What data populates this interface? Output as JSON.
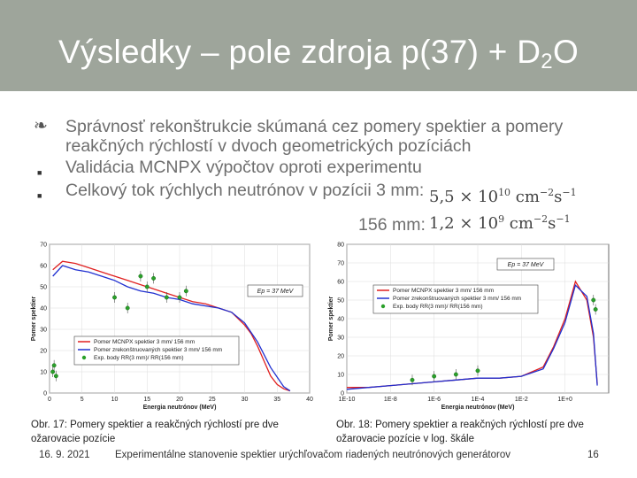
{
  "slide": {
    "title_main": "Výsledky – pole zdroja p(37) + D",
    "title_sub": "2",
    "title_end": "O"
  },
  "bullets": [
    {
      "marker": "",
      "text": "Správnosť rekonštrukcie skúmaná cez pomery spektier a pomery reakčných rýchlostí v dvoch geometrických pozíciách"
    },
    {
      "marker": "■",
      "text": "Validácia MCNPX výpočtov oproti experimentu"
    },
    {
      "marker": "■",
      "text": "Celkový tok rýchlych neutrónov v pozícii 3 mm:"
    }
  ],
  "flux": {
    "line1_value": "5,5 × 10",
    "line1_exp": "10",
    "line1_unit_a": " cm",
    "line1_unit_a_exp": "−2",
    "line1_unit_b": "s",
    "line1_unit_b_exp": "−1",
    "line2_label": "156 mm:",
    "line2_value": "1,2 × 10",
    "line2_exp": "9",
    "line2_unit_a": " cm",
    "line2_unit_a_exp": "−2",
    "line2_unit_b": "s",
    "line2_unit_b_exp": "−1"
  },
  "chart_data": [
    {
      "type": "line",
      "xlabel": "Energia neutrónov (MeV)",
      "ylabel": "Pomer spektier",
      "xlim": [
        0,
        40
      ],
      "ylim": [
        0,
        70
      ],
      "xticks": [
        "0",
        "5",
        "10",
        "15",
        "20",
        "25",
        "30",
        "35",
        "40"
      ],
      "yticks": [
        "0",
        "10",
        "20",
        "30",
        "40",
        "50",
        "60",
        "70"
      ],
      "annotation": "Ep = 37 MeV",
      "legend": [
        "Pomer MCNPX spektier 3 mm/ 156 mm",
        "Pomer zrekonštruovaných spektier 3 mm/ 156 mm",
        "Exp. body RR(3 mm)/ RR(156 mm)"
      ],
      "series": [
        {
          "name": "Pomer MCNPX spektier 3 mm/ 156 mm",
          "color": "#e02020",
          "x": [
            0.5,
            2,
            4,
            6,
            8,
            10,
            12,
            14,
            16,
            18,
            20,
            22,
            24,
            26,
            28,
            30,
            31,
            32,
            33,
            34,
            35,
            36,
            37
          ],
          "y": [
            58,
            62,
            61,
            59,
            57,
            55,
            53,
            51,
            49,
            47,
            45,
            43,
            42,
            40,
            38,
            32,
            28,
            22,
            15,
            8,
            4,
            2,
            1
          ]
        },
        {
          "name": "Pomer zrekonštruovaných spektier 3 mm/ 156 mm",
          "color": "#2030d0",
          "x": [
            0.5,
            2,
            4,
            6,
            8,
            10,
            12,
            14,
            16,
            18,
            20,
            22,
            24,
            26,
            28,
            30,
            32,
            34,
            36,
            37
          ],
          "y": [
            55,
            60,
            58,
            57,
            55,
            53,
            50,
            48,
            47,
            45,
            44,
            42,
            41,
            40,
            38,
            33,
            24,
            12,
            3,
            1
          ]
        },
        {
          "name": "Exp. body RR(3 mm)/ RR(156 mm)",
          "color": "#2aa02a",
          "x": [
            0.5,
            0.7,
            1,
            10,
            12,
            14,
            15,
            16,
            18,
            20,
            21
          ],
          "y": [
            10,
            13,
            8,
            45,
            40,
            55,
            50,
            54,
            45,
            45,
            48
          ]
        }
      ]
    },
    {
      "type": "line",
      "xlabel": "Energia neutrónov (MeV)",
      "ylabel": "Pomer spektier",
      "xscale": "log",
      "xlim": [
        1e-10,
        100
      ],
      "ylim": [
        0,
        80
      ],
      "xticks": [
        "1E-10",
        "1E-8",
        "1E-6",
        "1E-4",
        "1E-2",
        "1E+0"
      ],
      "yticks": [
        "0",
        "10",
        "20",
        "30",
        "40",
        "50",
        "60",
        "70",
        "80"
      ],
      "annotation": "Ep = 37 MeV",
      "legend": [
        "Pomer MCNPX spektier 3 mm/ 156 mm",
        "Pomer zrekonštruovaných spektier 3 mm/ 156 mm",
        "Exp. body RR(3 mm)/ RR(156 mm)"
      ],
      "series": [
        {
          "name": "Pomer MCNPX spektier 3 mm/ 156 mm",
          "color": "#e02020",
          "x": [
            1e-10,
            1e-09,
            1e-08,
            1e-07,
            1e-06,
            1e-05,
            0.0001,
            0.001,
            0.01,
            0.1,
            0.3,
            1,
            3,
            10,
            20,
            30
          ],
          "y": [
            3,
            3,
            4,
            5,
            6,
            7,
            8,
            8,
            9,
            14,
            25,
            40,
            60,
            50,
            30,
            5
          ]
        },
        {
          "name": "Pomer zrekonštruovaných spektier 3 mm/ 156 mm",
          "color": "#2030d0",
          "x": [
            1e-10,
            1e-09,
            1e-08,
            1e-07,
            1e-06,
            1e-05,
            0.0001,
            0.001,
            0.01,
            0.1,
            0.3,
            1,
            3,
            10,
            20,
            30
          ],
          "y": [
            2,
            3,
            4,
            5,
            6,
            7,
            8,
            8,
            9,
            13,
            24,
            38,
            58,
            52,
            32,
            4
          ]
        },
        {
          "name": "Exp. body RR(3 mm)/ RR(156 mm)",
          "color": "#2aa02a",
          "x": [
            1e-07,
            1e-06,
            1e-05,
            0.0001,
            20,
            25
          ],
          "y": [
            7,
            9,
            10,
            12,
            50,
            45
          ]
        }
      ]
    }
  ],
  "captions": {
    "fig17": "Obr. 17: Pomery spektier a reakčných rýchlostí pre dve ožarovacie pozície",
    "fig18": "Obr. 18: Pomery spektier a reakčných rýchlostí pre dve ožarovacie pozície v log. škále"
  },
  "footer": {
    "date": "16. 9. 2021",
    "text": "Experimentálne stanovenie spektier urýchľovačom riadených neutrónových generátorov",
    "page": "16"
  }
}
